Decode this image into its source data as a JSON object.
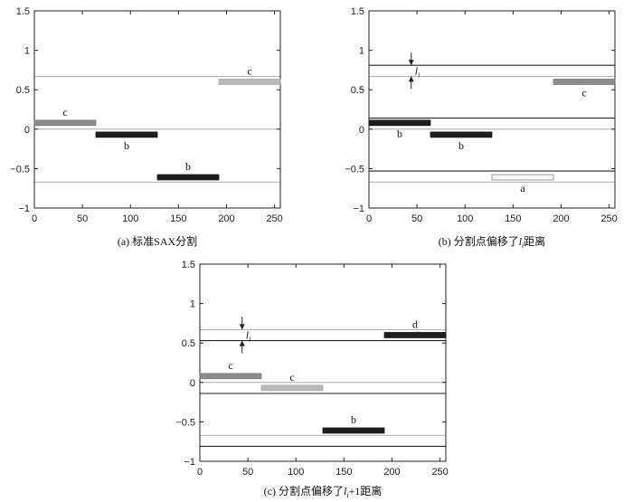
{
  "chart_data": [
    {
      "type": "line",
      "caption": "(a) 标准SAX分割",
      "xlim": [
        0,
        256
      ],
      "ylim": [
        -1,
        1.5
      ],
      "x_ticks": [
        0,
        50,
        100,
        150,
        200,
        250
      ],
      "y_ticks": [
        -1,
        -0.5,
        0,
        0.5,
        1,
        1.5
      ],
      "y_tick_labels": [
        "−1",
        "−0.5",
        "0",
        "0.5",
        "1",
        "1.5"
      ],
      "breakpoints": [
        {
          "y": 0.67,
          "style": "thin"
        },
        {
          "y": 0,
          "style": "thin"
        },
        {
          "y": -0.67,
          "style": "thin"
        }
      ],
      "segments": [
        {
          "x0": 0,
          "x1": 64,
          "y": 0.08,
          "symbol": "c",
          "shade": "medium",
          "label_pos": "above"
        },
        {
          "x0": 64,
          "x1": 128,
          "y": -0.07,
          "symbol": "b",
          "shade": "dark",
          "label_pos": "below"
        },
        {
          "x0": 128,
          "x1": 192,
          "y": -0.61,
          "symbol": "b",
          "shade": "dark",
          "label_pos": "above"
        },
        {
          "x0": 192,
          "x1": 256,
          "y": 0.6,
          "symbol": "c",
          "shade": "light",
          "label_pos": "above"
        }
      ]
    },
    {
      "type": "line",
      "caption_prefix": "(b) 分割点偏移了",
      "caption_var": "l",
      "caption_sub": "i",
      "caption_suffix": "距离",
      "xlim": [
        0,
        256
      ],
      "ylim": [
        -1,
        1.5
      ],
      "x_ticks": [
        0,
        50,
        100,
        150,
        200,
        250
      ],
      "y_ticks": [
        -1,
        -0.5,
        0,
        0.5,
        1,
        1.5
      ],
      "y_tick_labels": [
        "−1",
        "−0.5",
        "0",
        "0.5",
        "1",
        "1.5"
      ],
      "breakpoints": [
        {
          "y": 0.81,
          "style": "thick"
        },
        {
          "y": 0.67,
          "style": "thin"
        },
        {
          "y": 0.14,
          "style": "thick"
        },
        {
          "y": 0,
          "style": "thin"
        },
        {
          "y": -0.53,
          "style": "thick"
        },
        {
          "y": -0.67,
          "style": "thin"
        }
      ],
      "offset_marker": {
        "x": 44,
        "y_top": 0.81,
        "y_bottom": 0.67,
        "var": "l",
        "sub": "i"
      },
      "segments": [
        {
          "x0": 0,
          "x1": 64,
          "y": 0.08,
          "symbol": "b",
          "shade": "dark",
          "label_pos": "below"
        },
        {
          "x0": 64,
          "x1": 128,
          "y": -0.07,
          "symbol": "b",
          "shade": "dark",
          "label_pos": "below"
        },
        {
          "x0": 128,
          "x1": 192,
          "y": -0.61,
          "symbol": "a",
          "shade": "white",
          "label_pos": "below"
        },
        {
          "x0": 192,
          "x1": 256,
          "y": 0.6,
          "symbol": "c",
          "shade": "medium",
          "label_pos": "below"
        }
      ]
    },
    {
      "type": "line",
      "caption_prefix": "(c) 分割点偏移了",
      "caption_var": "l",
      "caption_sub": "i",
      "caption_suffix": "+1距离",
      "xlim": [
        0,
        256
      ],
      "ylim": [
        -1,
        1.5
      ],
      "x_ticks": [
        0,
        50,
        100,
        150,
        200,
        250
      ],
      "y_ticks": [
        -1,
        -0.5,
        0,
        0.5,
        1,
        1.5
      ],
      "y_tick_labels": [
        "−1",
        "−0.5",
        "0",
        "0.5",
        "1",
        "1.5"
      ],
      "breakpoints": [
        {
          "y": 0.67,
          "style": "thin"
        },
        {
          "y": 0.53,
          "style": "thick"
        },
        {
          "y": 0,
          "style": "thin"
        },
        {
          "y": -0.14,
          "style": "thick"
        },
        {
          "y": -0.67,
          "style": "thin"
        },
        {
          "y": -0.81,
          "style": "thick"
        }
      ],
      "offset_marker": {
        "x": 44,
        "y_top": 0.67,
        "y_bottom": 0.53,
        "var": "l",
        "sub": "i"
      },
      "segments": [
        {
          "x0": 0,
          "x1": 64,
          "y": 0.08,
          "symbol": "c",
          "shade": "medium",
          "label_pos": "above"
        },
        {
          "x0": 64,
          "x1": 128,
          "y": -0.07,
          "symbol": "c",
          "shade": "light",
          "label_pos": "above"
        },
        {
          "x0": 128,
          "x1": 192,
          "y": -0.61,
          "symbol": "b",
          "shade": "dark",
          "label_pos": "above"
        },
        {
          "x0": 192,
          "x1": 256,
          "y": 0.6,
          "symbol": "d",
          "shade": "dark",
          "label_pos": "above"
        }
      ]
    }
  ]
}
